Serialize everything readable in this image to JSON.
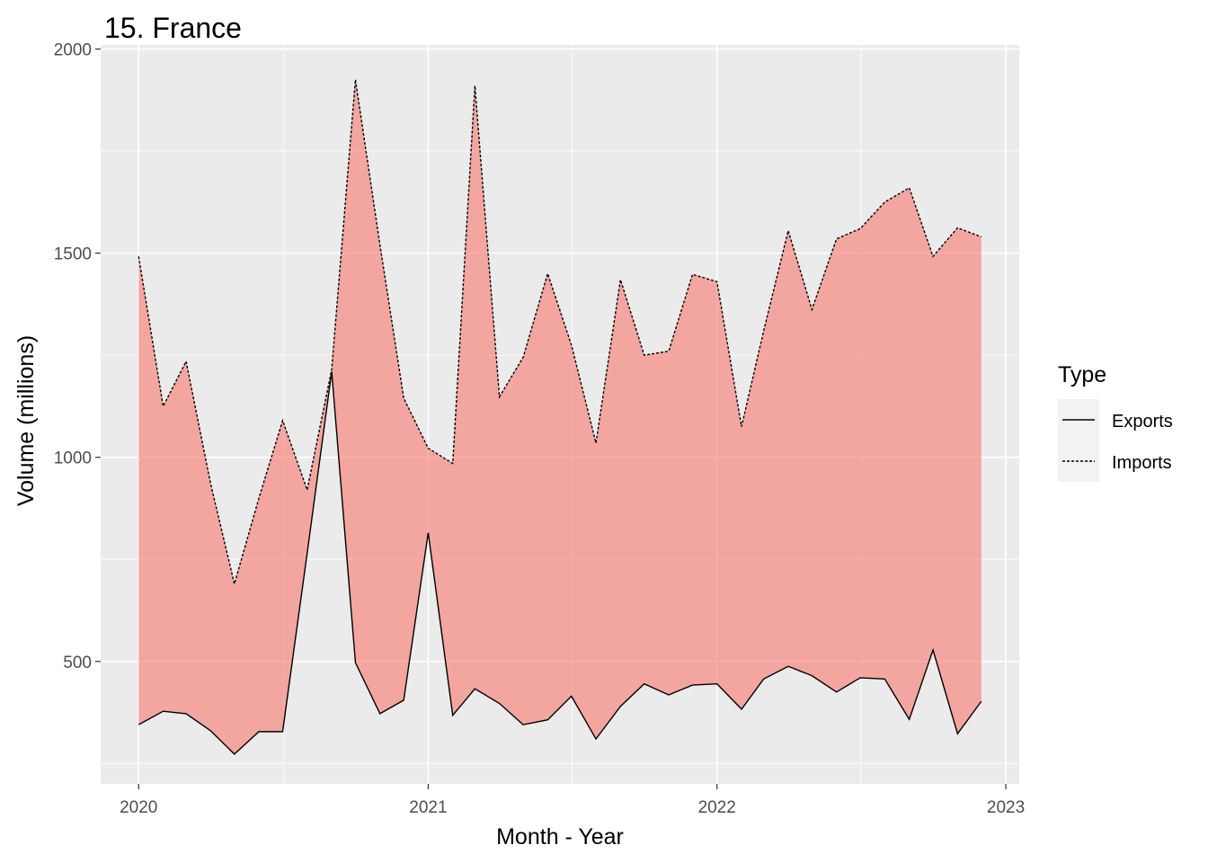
{
  "chart_data": {
    "type": "area",
    "title": "15. France",
    "xlabel": "Month - Year",
    "ylabel": "Volume (millions)",
    "x_tick_labels": [
      "2020",
      "2021",
      "2022",
      "2023"
    ],
    "y_tick_labels": [
      "500",
      "1000",
      "1500",
      "2000"
    ],
    "ylim": [
      200,
      2010
    ],
    "xlim": [
      "2019-11-14",
      "2023-01-18"
    ],
    "grid": true,
    "colors": {
      "panel": "#ebebeb",
      "grid": "#ffffff",
      "ribbon": "#f8766d",
      "line": "#000000",
      "legend_key_bg": "#f2f2f2"
    },
    "legend": {
      "title": "Type",
      "placement": "right",
      "entries": [
        {
          "label": "Exports",
          "linetype": "solid"
        },
        {
          "label": "Imports",
          "linetype": "dashed"
        }
      ]
    },
    "x": [
      "2020-01",
      "2020-02",
      "2020-03",
      "2020-04",
      "2020-05",
      "2020-06",
      "2020-07",
      "2020-08",
      "2020-09",
      "2020-10",
      "2020-11",
      "2020-12",
      "2021-01",
      "2021-02",
      "2021-03",
      "2021-04",
      "2021-05",
      "2021-06",
      "2021-07",
      "2021-08",
      "2021-09",
      "2021-10",
      "2021-11",
      "2021-12",
      "2022-01",
      "2022-02",
      "2022-03",
      "2022-04",
      "2022-05",
      "2022-06",
      "2022-07",
      "2022-08",
      "2022-09",
      "2022-10",
      "2022-11",
      "2022-12"
    ],
    "series": [
      {
        "name": "Exports",
        "values": [
          345,
          378,
          372,
          330,
          273,
          328,
          328,
          765,
          1210,
          497,
          372,
          405,
          815,
          368,
          433,
          397,
          345,
          357,
          415,
          310,
          390,
          445,
          418,
          442,
          445,
          383,
          457,
          488,
          465,
          425,
          460,
          457,
          358,
          528,
          323,
          402
        ]
      },
      {
        "name": "Imports",
        "values": [
          1492,
          1125,
          1235,
          935,
          690,
          900,
          1090,
          920,
          1215,
          1925,
          1520,
          1145,
          1022,
          985,
          1910,
          1148,
          1245,
          1450,
          1275,
          1035,
          1435,
          1250,
          1260,
          1448,
          1430,
          1075,
          1310,
          1555,
          1362,
          1535,
          1560,
          1625,
          1660,
          1492,
          1562,
          1540
        ]
      }
    ]
  }
}
